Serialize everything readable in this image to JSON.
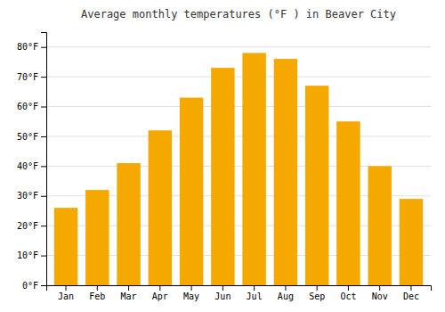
{
  "chart_data": {
    "type": "bar",
    "title": "Average monthly temperatures (°F ) in Beaver City",
    "categories": [
      "Jan",
      "Feb",
      "Mar",
      "Apr",
      "May",
      "Jun",
      "Jul",
      "Aug",
      "Sep",
      "Oct",
      "Nov",
      "Dec"
    ],
    "values": [
      26,
      32,
      41,
      52,
      63,
      73,
      78,
      76,
      67,
      55,
      40,
      29
    ],
    "color": "#F5A800",
    "ylim": [
      0,
      85
    ],
    "yticks": [
      {
        "value": 0,
        "label": "0°F"
      },
      {
        "value": 10,
        "label": "10°F"
      },
      {
        "value": 20,
        "label": "20°F"
      },
      {
        "value": 30,
        "label": "30°F"
      },
      {
        "value": 40,
        "label": "40°F"
      },
      {
        "value": 50,
        "label": "50°F"
      },
      {
        "value": 60,
        "label": "60°F"
      },
      {
        "value": 70,
        "label": "70°F"
      },
      {
        "value": 80,
        "label": "80°F"
      }
    ],
    "grid": true
  }
}
